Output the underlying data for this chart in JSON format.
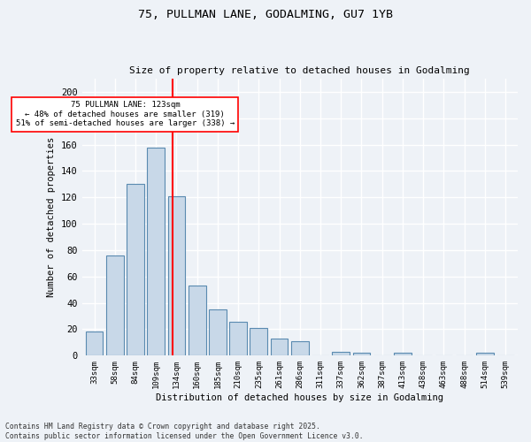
{
  "title_line1": "75, PULLMAN LANE, GODALMING, GU7 1YB",
  "title_line2": "Size of property relative to detached houses in Godalming",
  "xlabel": "Distribution of detached houses by size in Godalming",
  "ylabel": "Number of detached properties",
  "categories": [
    "33sqm",
    "58sqm",
    "84sqm",
    "109sqm",
    "134sqm",
    "160sqm",
    "185sqm",
    "210sqm",
    "235sqm",
    "261sqm",
    "286sqm",
    "311sqm",
    "337sqm",
    "362sqm",
    "387sqm",
    "413sqm",
    "438sqm",
    "463sqm",
    "488sqm",
    "514sqm",
    "539sqm"
  ],
  "values": [
    18,
    76,
    130,
    158,
    121,
    53,
    35,
    26,
    21,
    13,
    11,
    0,
    3,
    2,
    0,
    2,
    0,
    0,
    0,
    2,
    0
  ],
  "bar_color": "#c8d8e8",
  "bar_edge_color": "#5a8ab0",
  "vline_x": 3.82,
  "vline_color": "red",
  "annotation_text": "75 PULLMAN LANE: 123sqm\n← 48% of detached houses are smaller (319)\n51% of semi-detached houses are larger (338) →",
  "annotation_box_color": "white",
  "annotation_box_edge_color": "red",
  "ylim": [
    0,
    210
  ],
  "yticks": [
    0,
    20,
    40,
    60,
    80,
    100,
    120,
    140,
    160,
    180,
    200
  ],
  "footer_line1": "Contains HM Land Registry data © Crown copyright and database right 2025.",
  "footer_line2": "Contains public sector information licensed under the Open Government Licence v3.0.",
  "background_color": "#eef2f7",
  "grid_color": "white"
}
